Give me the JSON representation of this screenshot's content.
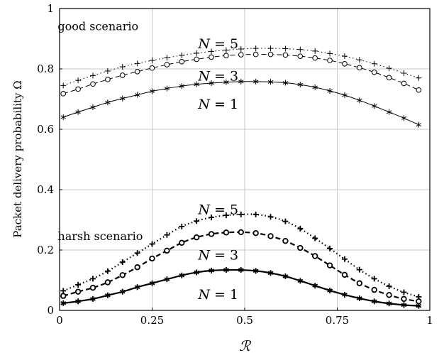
{
  "chart_data": {
    "type": "line",
    "xlabel": "ℛ",
    "ylabel": "Packet delivery probability Ω",
    "xlim": [
      0,
      1
    ],
    "ylim": [
      0,
      1
    ],
    "xticks": [
      "0",
      "0.25",
      "0.5",
      "0.75",
      "1"
    ],
    "xtick_values": [
      0,
      0.25,
      0.5,
      0.75,
      1
    ],
    "yticks": [
      "0",
      "0.2",
      "0.4",
      "0.6",
      "0.8",
      "1"
    ],
    "ytick_values": [
      0,
      0.2,
      0.4,
      0.6,
      0.8,
      1
    ],
    "grid": true,
    "scenario_labels": [
      {
        "text": "good scenario",
        "x": 0.11,
        "y": 0.94
      },
      {
        "text": "harsh scenario",
        "x": 0.11,
        "y": 0.245
      }
    ],
    "annotations": [
      {
        "text": "N = 5",
        "x": 0.29,
        "y": 0.885
      },
      {
        "text": "N = 3",
        "x": 0.29,
        "y": 0.778
      },
      {
        "text": "N = 1",
        "x": 0.29,
        "y": 0.685
      },
      {
        "text": "N = 5",
        "x": 0.29,
        "y": 0.335
      },
      {
        "text": "N = 3",
        "x": 0.29,
        "y": 0.185
      },
      {
        "text": "N = 1",
        "x": 0.29,
        "y": 0.054
      }
    ],
    "x": [
      0.01,
      0.05,
      0.09,
      0.13,
      0.17,
      0.21,
      0.25,
      0.29,
      0.33,
      0.37,
      0.41,
      0.45,
      0.49,
      0.53,
      0.57,
      0.61,
      0.65,
      0.69,
      0.73,
      0.77,
      0.81,
      0.85,
      0.89,
      0.93,
      0.97
    ],
    "series": [
      {
        "scenario": "good",
        "N": 5,
        "line": "dotted",
        "marker": "plus",
        "width": 1,
        "values": [
          0.745,
          0.762,
          0.778,
          0.793,
          0.807,
          0.818,
          0.828,
          0.837,
          0.845,
          0.852,
          0.858,
          0.862,
          0.866,
          0.868,
          0.868,
          0.867,
          0.864,
          0.859,
          0.851,
          0.842,
          0.83,
          0.817,
          0.802,
          0.786,
          0.77
        ]
      },
      {
        "scenario": "good",
        "N": 3,
        "line": "dashed",
        "marker": "circle",
        "width": 1,
        "values": [
          0.718,
          0.733,
          0.75,
          0.765,
          0.779,
          0.791,
          0.803,
          0.814,
          0.824,
          0.832,
          0.839,
          0.844,
          0.847,
          0.848,
          0.848,
          0.846,
          0.842,
          0.836,
          0.828,
          0.817,
          0.804,
          0.789,
          0.771,
          0.752,
          0.73
        ]
      },
      {
        "scenario": "good",
        "N": 1,
        "line": "solid",
        "marker": "star",
        "width": 1,
        "values": [
          0.64,
          0.657,
          0.673,
          0.689,
          0.702,
          0.714,
          0.726,
          0.735,
          0.743,
          0.749,
          0.753,
          0.756,
          0.758,
          0.758,
          0.757,
          0.754,
          0.748,
          0.739,
          0.727,
          0.713,
          0.696,
          0.677,
          0.657,
          0.637,
          0.615
        ]
      },
      {
        "scenario": "harsh",
        "N": 5,
        "line": "dotted",
        "marker": "plus",
        "width": 2.2,
        "values": [
          0.065,
          0.085,
          0.105,
          0.13,
          0.16,
          0.19,
          0.22,
          0.25,
          0.278,
          0.296,
          0.308,
          0.315,
          0.318,
          0.318,
          0.31,
          0.295,
          0.271,
          0.239,
          0.205,
          0.17,
          0.135,
          0.105,
          0.08,
          0.06,
          0.045
        ]
      },
      {
        "scenario": "harsh",
        "N": 3,
        "line": "dashed",
        "marker": "circle",
        "width": 2.2,
        "values": [
          0.048,
          0.062,
          0.075,
          0.093,
          0.117,
          0.143,
          0.172,
          0.198,
          0.224,
          0.242,
          0.253,
          0.258,
          0.259,
          0.256,
          0.246,
          0.23,
          0.207,
          0.18,
          0.149,
          0.118,
          0.09,
          0.068,
          0.051,
          0.038,
          0.03
        ]
      },
      {
        "scenario": "harsh",
        "N": 1,
        "line": "solid",
        "marker": "star",
        "width": 2.2,
        "values": [
          0.024,
          0.03,
          0.038,
          0.05,
          0.062,
          0.077,
          0.09,
          0.103,
          0.116,
          0.126,
          0.132,
          0.134,
          0.134,
          0.131,
          0.124,
          0.113,
          0.098,
          0.082,
          0.066,
          0.052,
          0.04,
          0.03,
          0.023,
          0.018,
          0.015
        ]
      }
    ]
  }
}
